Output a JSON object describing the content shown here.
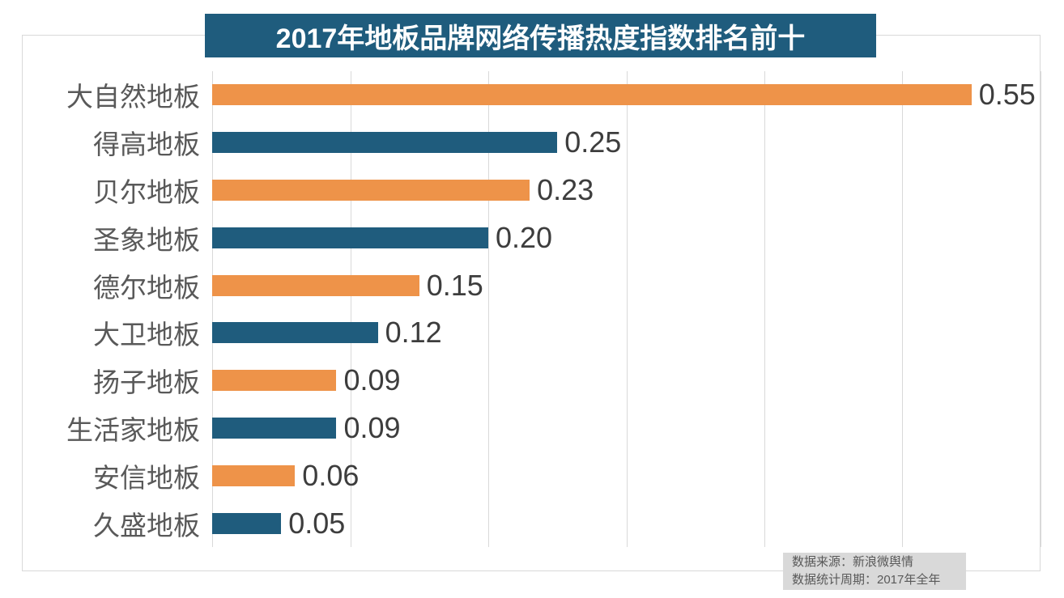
{
  "title": "2017年地板品牌网络传播热度指数排名前十",
  "colors": {
    "title_bg": "#1f5c7d",
    "title_text": "#ffffff",
    "bar_orange": "#ee9349",
    "bar_teal": "#1f5c7d",
    "gridline": "#d9d9d9",
    "frame_border": "#d9d9d9",
    "category_label": "#595959",
    "value_label": "#3d3d3d",
    "source_bg": "#d9d9d9",
    "source_text": "#595959"
  },
  "chart_data": {
    "type": "bar",
    "orientation": "horizontal",
    "title": "2017年地板品牌网络传播热度指数排名前十",
    "categories": [
      "大自然地板",
      "得高地板",
      "贝尔地板",
      "圣象地板",
      "德尔地板",
      "大卫地板",
      "扬子地板",
      "生活家地板",
      "安信地板",
      "久盛地板"
    ],
    "values": [
      0.55,
      0.25,
      0.23,
      0.2,
      0.15,
      0.12,
      0.09,
      0.09,
      0.06,
      0.05
    ],
    "value_labels": [
      "0.55",
      "0.25",
      "0.23",
      "0.20",
      "0.15",
      "0.12",
      "0.09",
      "0.09",
      "0.06",
      "0.05"
    ],
    "bar_color_pattern": [
      "#ee9349",
      "#1f5c7d"
    ],
    "xlabel": "",
    "ylabel": "",
    "xlim": [
      0,
      0.6
    ],
    "gridline_interval": 0.1,
    "grid": true,
    "legend_position": "none",
    "data_labels": true
  },
  "source_note": {
    "line1": "数据来源：新浪微舆情",
    "line2": "数据统计周期：2017年全年"
  }
}
